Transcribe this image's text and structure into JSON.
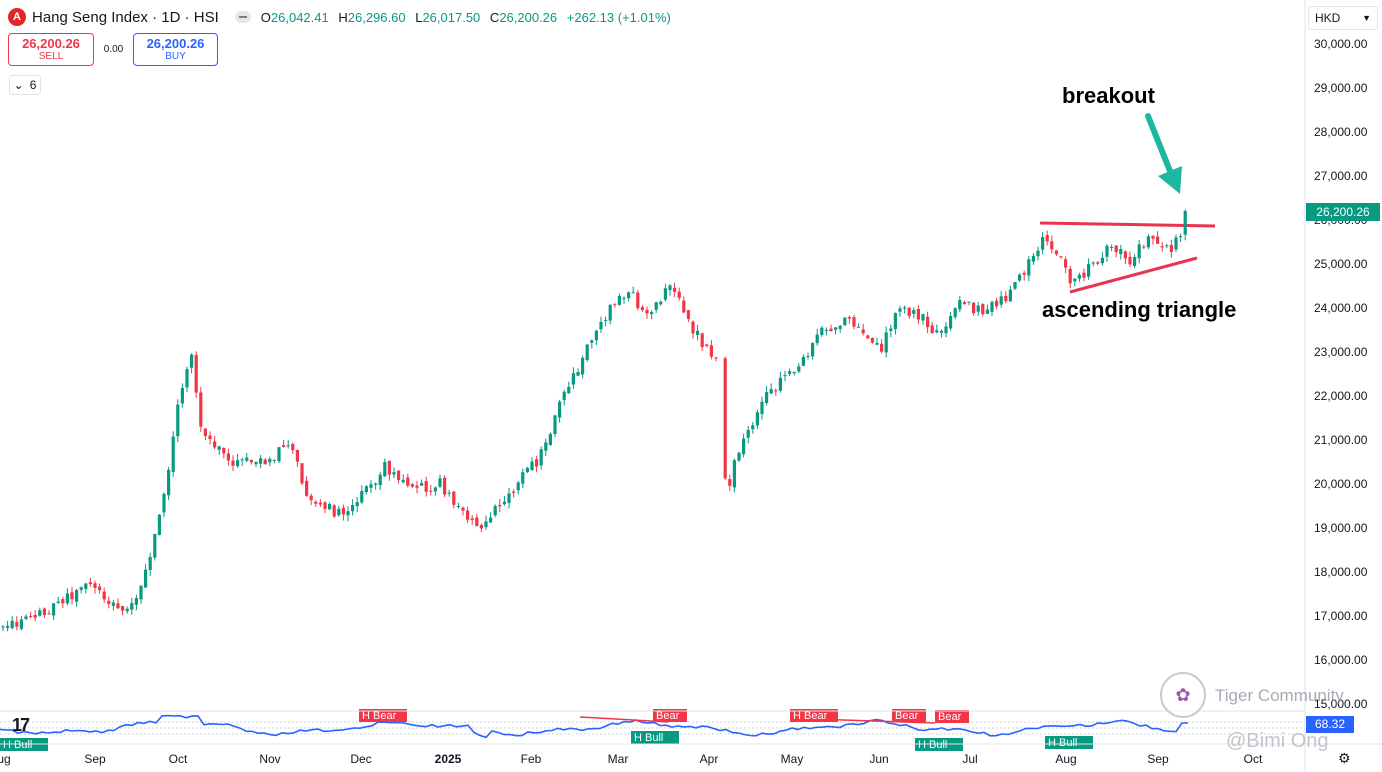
{
  "header": {
    "logo_letter": "A",
    "symbol": "Hang Seng Index · 1D · HSI",
    "ohlc": {
      "o_label": "O",
      "o_value": "26,042.41",
      "h_label": "H",
      "h_value": "26,296.60",
      "l_label": "L",
      "l_value": "26,017.50",
      "c_label": "C",
      "c_value": "26,200.26",
      "change": "+262.13 (+1.01%)"
    }
  },
  "trade": {
    "sell_price": "26,200.26",
    "sell_label": "SELL",
    "spread": "0.00",
    "buy_price": "26,200.26",
    "buy_label": "BUY"
  },
  "indicators_count": "6",
  "currency": "HKD",
  "price_axis": {
    "labels": [
      "30,000.00",
      "29,000.00",
      "28,000.00",
      "27,000.00",
      "26,000.00",
      "25,000.00",
      "24,000.00",
      "23,000.00",
      "22,000.00",
      "21,000.00",
      "20,000.00",
      "19,000.00",
      "18,000.00",
      "17,000.00",
      "16,000.00",
      "15,000.00"
    ],
    "current_price": "26,200.26"
  },
  "time_axis": {
    "labels": [
      "Aug",
      "Sep",
      "Oct",
      "Nov",
      "Dec",
      "2025",
      "Feb",
      "Mar",
      "Apr",
      "May",
      "Jun",
      "Jul",
      "Aug",
      "Sep",
      "Oct"
    ]
  },
  "annotations": {
    "breakout": "breakout",
    "triangle": "ascending triangle"
  },
  "rsi": {
    "value": "68.32",
    "labels": [
      "H Bear",
      "Bear",
      "H Bear",
      "Bear",
      "Bear",
      "H Bull",
      "H Bull",
      "H Bull",
      "H Bull"
    ]
  },
  "watermark": {
    "brand": "Tiger Community",
    "user": "@Bimi Ong"
  },
  "colors": {
    "up": "#089981",
    "down": "#f23645",
    "rsi": "#2962ff",
    "trendline": "#e8344e",
    "arrow": "#1cb8a0"
  },
  "chart_data": {
    "type": "candlestick",
    "symbol": "HSI",
    "interval": "1D",
    "ylim": [
      15000,
      30000
    ],
    "series": [
      {
        "name": "close",
        "x": [
          "Aug",
          "Sep",
          "Oct",
          "Nov",
          "Dec",
          "2025",
          "Feb",
          "Mar",
          "Apr",
          "May",
          "Jun",
          "Jul",
          "Aug",
          "Sep"
        ],
        "values": [
          16900,
          17800,
          21000,
          20500,
          19400,
          19800,
          20200,
          24100,
          23000,
          22000,
          24000,
          24400,
          25200,
          26200
        ]
      }
    ]
  }
}
